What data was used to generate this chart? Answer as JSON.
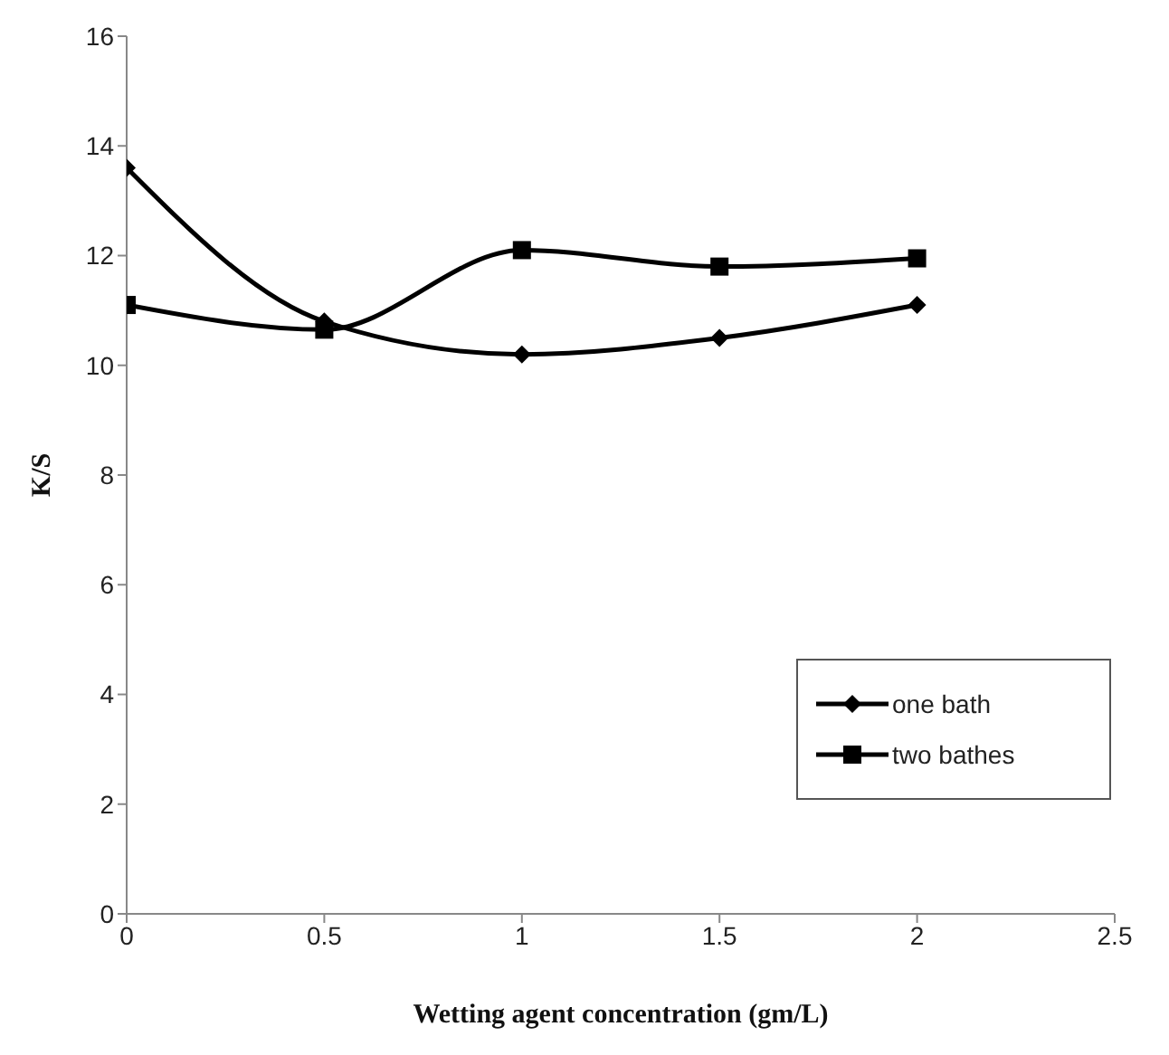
{
  "chart_data": {
    "type": "line",
    "xlabel": "Wetting agent concentration (gm/L)",
    "ylabel": "K/S",
    "x": [
      0,
      0.5,
      1,
      1.5,
      2
    ],
    "series": [
      {
        "name": "one bath",
        "color": "#000000",
        "marker": "diamond",
        "values": [
          13.6,
          10.8,
          10.2,
          10.5,
          11.1
        ]
      },
      {
        "name": "two bathes",
        "color": "#000000",
        "marker": "square",
        "values": [
          11.1,
          10.65,
          12.1,
          11.8,
          11.95
        ]
      }
    ],
    "xlim": [
      0,
      2.5
    ],
    "xticks": [
      0,
      0.5,
      1,
      1.5,
      2,
      2.5
    ],
    "ylim": [
      0,
      16
    ],
    "yticks": [
      0,
      2,
      4,
      6,
      8,
      10,
      12,
      14,
      16
    ],
    "grid": false,
    "legend": "right"
  }
}
